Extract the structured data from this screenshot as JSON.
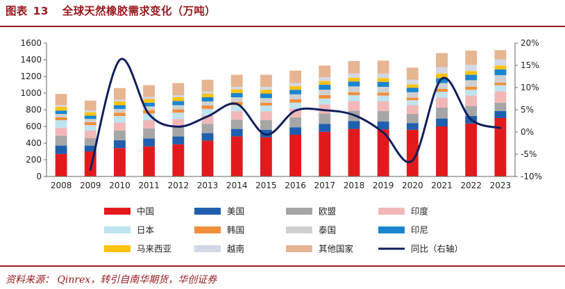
{
  "header": {
    "figure_label": "图表",
    "figure_number": "13",
    "title": "全球天然橡胶需求变化（万吨）"
  },
  "footer": {
    "source": "资料来源：  Qinrex，转引自南华期货，华创证券"
  },
  "colors": {
    "accent": "#9a1c20",
    "中国": "#e31a1c",
    "美国": "#1f5fad",
    "欧盟": "#a6a6a6",
    "印度": "#f2b8b8",
    "日本": "#bfe3ef",
    "韩国": "#f28e3c",
    "泰国": "#d0d0d0",
    "印尼": "#1a86cf",
    "马来西亚": "#ffc20e",
    "越南": "#d3d7e8",
    "其他国家": "#e6b592",
    "同比（右轴）": "#0f1f5c"
  },
  "chart_data": {
    "type": "bar",
    "stacked": true,
    "categories": [
      "2008",
      "2009",
      "2010",
      "2011",
      "2012",
      "2013",
      "2014",
      "2015",
      "2016",
      "2017",
      "2018",
      "2019",
      "2020",
      "2021",
      "2022",
      "2023"
    ],
    "series": [
      {
        "name": "中国",
        "values": [
          270,
          300,
          340,
          360,
          385,
          430,
          480,
          470,
          500,
          535,
          570,
          565,
          560,
          600,
          635,
          700
        ]
      },
      {
        "name": "美国",
        "values": [
          100,
          70,
          95,
          95,
          95,
          90,
          90,
          90,
          90,
          95,
          95,
          95,
          80,
          95,
          90,
          85
        ]
      },
      {
        "name": "欧盟",
        "values": [
          120,
          90,
          115,
          120,
          110,
          110,
          110,
          115,
          120,
          125,
          125,
          125,
          110,
          130,
          120,
          100
        ]
      },
      {
        "name": "印度",
        "values": [
          95,
          90,
          95,
          100,
          100,
          105,
          105,
          105,
          105,
          110,
          115,
          115,
          105,
          120,
          125,
          135
        ]
      },
      {
        "name": "日本",
        "values": [
          90,
          65,
          80,
          80,
          75,
          75,
          70,
          70,
          70,
          70,
          70,
          70,
          60,
          70,
          70,
          75
        ]
      },
      {
        "name": "韩国",
        "values": [
          35,
          35,
          40,
          40,
          40,
          40,
          40,
          35,
          40,
          40,
          35,
          35,
          30,
          35,
          35,
          30
        ]
      },
      {
        "name": "泰国",
        "values": [
          40,
          40,
          45,
          45,
          50,
          50,
          55,
          55,
          60,
          65,
          70,
          70,
          65,
          70,
          80,
          90
        ]
      },
      {
        "name": "印尼",
        "values": [
          40,
          40,
          45,
          45,
          50,
          50,
          50,
          55,
          55,
          60,
          60,
          60,
          55,
          60,
          65,
          70
        ]
      },
      {
        "name": "马来西亚",
        "values": [
          45,
          40,
          45,
          45,
          45,
          45,
          45,
          45,
          45,
          45,
          45,
          45,
          40,
          55,
          45,
          45
        ]
      },
      {
        "name": "越南",
        "values": [
          20,
          20,
          20,
          25,
          25,
          25,
          30,
          35,
          35,
          45,
          50,
          55,
          55,
          75,
          75,
          75
        ]
      },
      {
        "name": "其他国家",
        "values": [
          135,
          120,
          140,
          140,
          145,
          140,
          145,
          145,
          150,
          140,
          150,
          155,
          145,
          170,
          170,
          110
        ]
      }
    ],
    "line": {
      "name": "同比（右轴）",
      "axis": "right",
      "values": [
        null,
        -8.5,
        16.2,
        4.0,
        1.2,
        3.5,
        6.3,
        -0.6,
        4.8,
        4.9,
        3.8,
        -0.1,
        -6.4,
        12.0,
        2.8,
        0.9
      ]
    },
    "y_left": {
      "min": 0,
      "max": 1600,
      "step": 200,
      "tick_labels": [
        "0",
        "200",
        "400",
        "600",
        "800",
        "1000",
        "1200",
        "1400",
        "1600"
      ]
    },
    "y_right": {
      "min": -10,
      "max": 20,
      "step": 5,
      "tick_labels": [
        "-10%",
        "-5%",
        "0%",
        "5%",
        "10%",
        "15%",
        "20%"
      ]
    },
    "legend_position": "bottom",
    "grid": false
  }
}
